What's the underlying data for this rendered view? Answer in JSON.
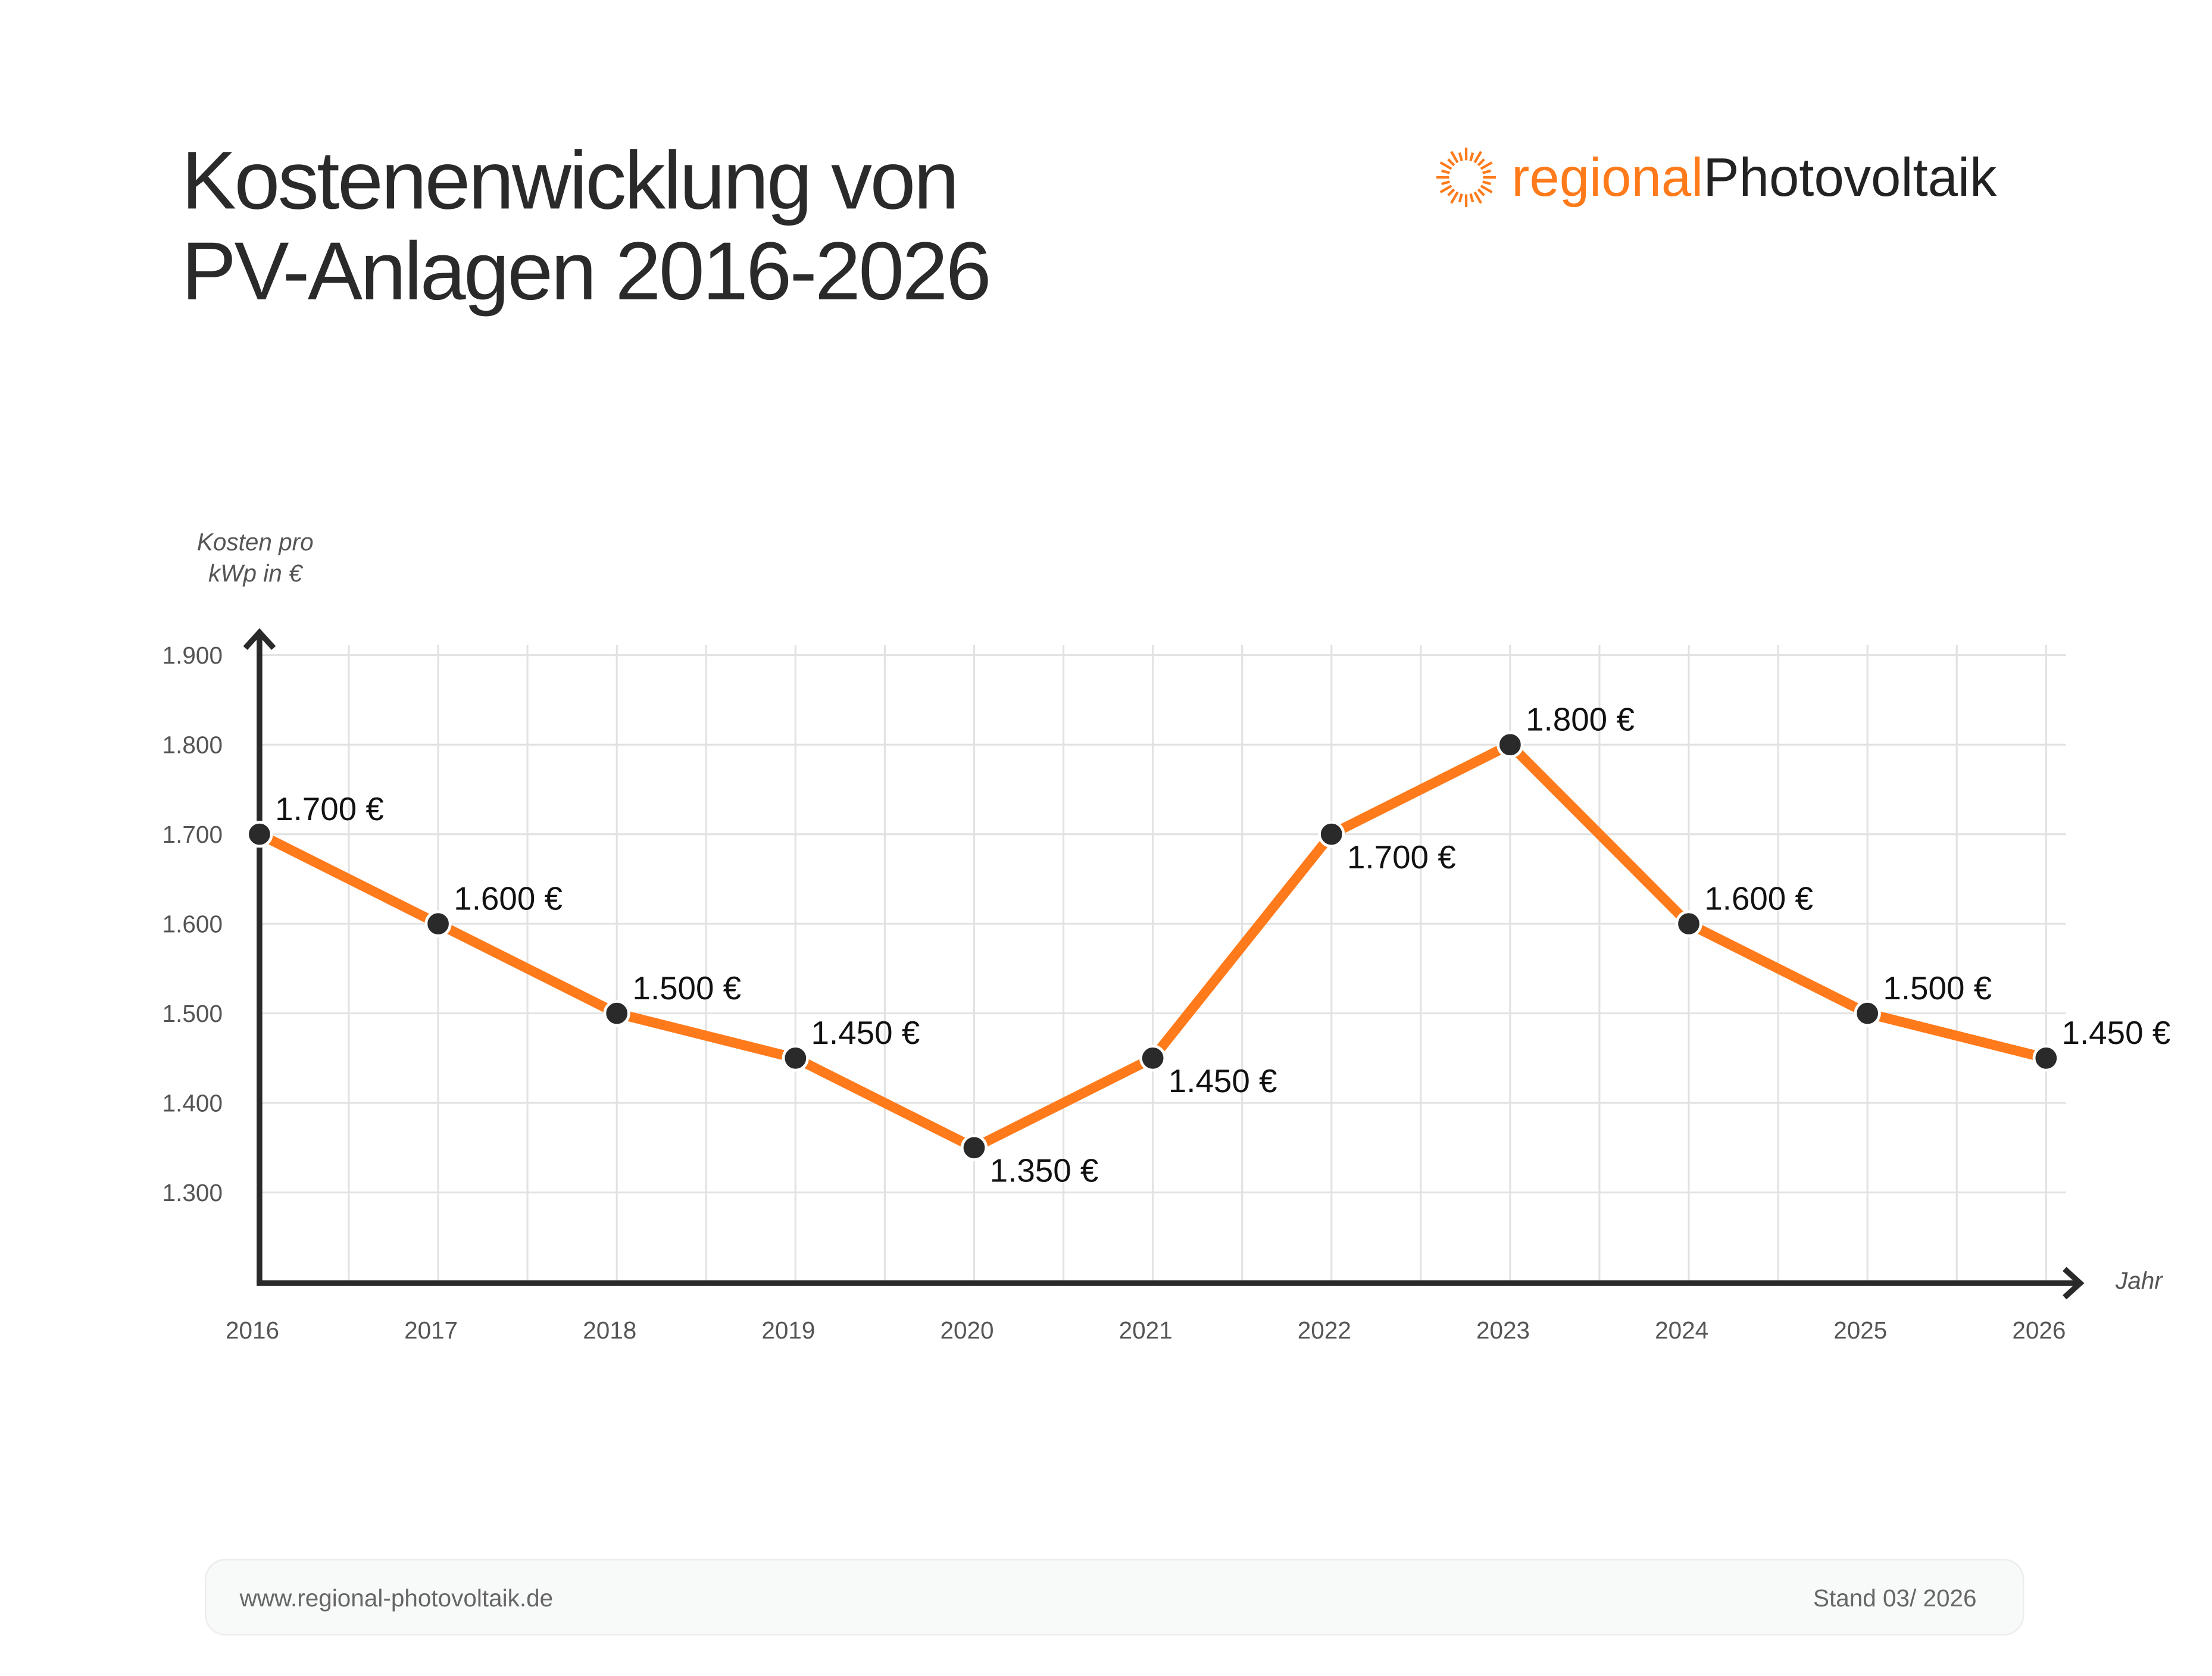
{
  "header": {
    "title_line1": "Kostenenwicklung von",
    "title_line2": "PV-Anlagen 2016-2026"
  },
  "logo": {
    "part1": "regional",
    "part2": "Photovoltaik",
    "icon": "sun-rays-icon"
  },
  "footer": {
    "url": "www.regional-photovoltaik.de",
    "date": "Stand 03/ 2026"
  },
  "colors": {
    "line": "#ff7a1a",
    "marker": "#2a2a2a",
    "axis": "#2a2a2a",
    "grid": "#e2e2e2",
    "text": "#2a2a2a",
    "accent": "#ff7a1a"
  },
  "chart_data": {
    "type": "line",
    "title": "Kostenenwicklung von PV-Anlagen 2016-2026",
    "ylabel_line1": "Kosten pro",
    "ylabel_line2": "kWp in €",
    "xlabel": "Jahr",
    "x": [
      "2016",
      "2017",
      "2018",
      "2019",
      "2020",
      "2021",
      "2022",
      "2023",
      "2024",
      "2025",
      "2026"
    ],
    "values": [
      1700,
      1600,
      1500,
      1450,
      1350,
      1450,
      1700,
      1800,
      1600,
      1500,
      1450
    ],
    "data_labels": [
      "1.700 €",
      "1.600 €",
      "1.500 €",
      "1.450 €",
      "1.350 €",
      "1.450 €",
      "1.700 €",
      "1.800 €",
      "1.600 €",
      "1.500 €",
      "1.450 €"
    ],
    "label_position": [
      "above",
      "above",
      "above",
      "above",
      "below",
      "below",
      "below",
      "above",
      "above",
      "above",
      "above"
    ],
    "yticks": [
      1300,
      1400,
      1500,
      1600,
      1700,
      1800,
      1900
    ],
    "ytick_labels": [
      "1.300",
      "1.400",
      "1.500",
      "1.600",
      "1.700",
      "1.800",
      "1.900"
    ],
    "ylim": [
      1200,
      1900
    ],
    "grid": true
  }
}
